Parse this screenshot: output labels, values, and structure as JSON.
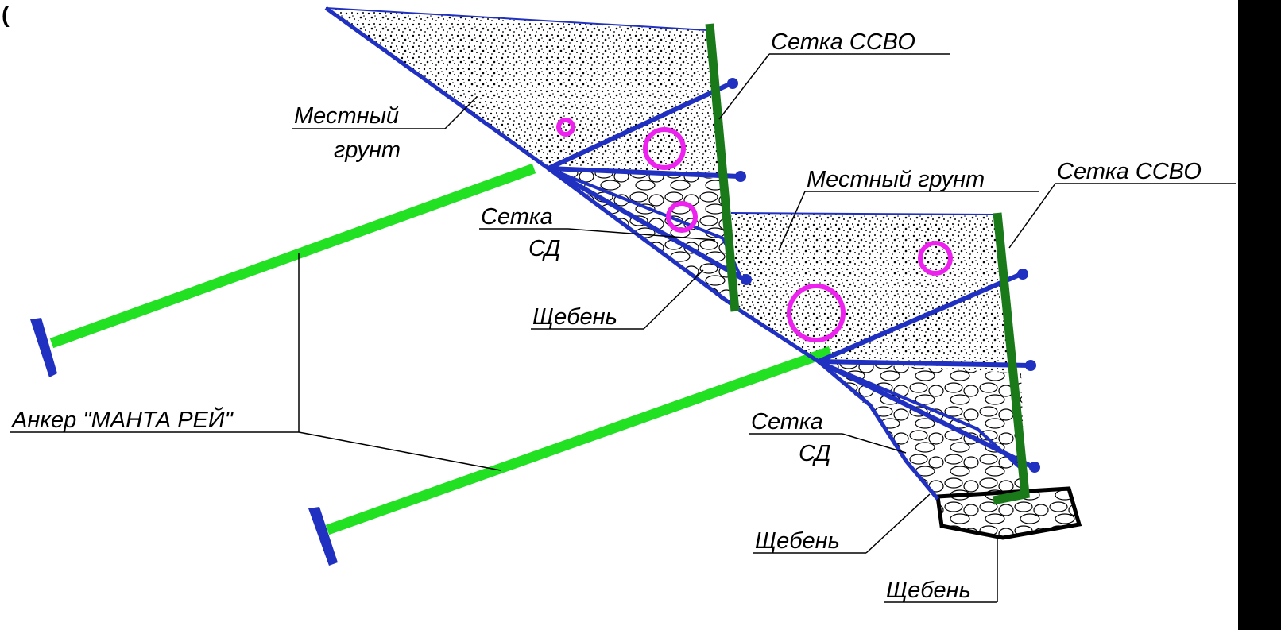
{
  "corner_mark": "(",
  "labels": [
    {
      "lines": [
        "Сетка  ССВО"
      ]
    },
    {
      "lines": [
        "Местный",
        "грунт"
      ]
    },
    {
      "lines": [
        "Местный  грунт"
      ]
    },
    {
      "lines": [
        "Сетка  ССВО"
      ]
    },
    {
      "lines": [
        "Сетка",
        "СД"
      ]
    },
    {
      "lines": [
        "Щебень"
      ]
    },
    {
      "lines": [
        "Анкер  \"МАНТА  РЕЙ\""
      ]
    },
    {
      "lines": [
        "Сетка",
        "СД"
      ]
    },
    {
      "lines": [
        "Щебень"
      ]
    },
    {
      "lines": [
        "Щебень"
      ]
    }
  ]
}
